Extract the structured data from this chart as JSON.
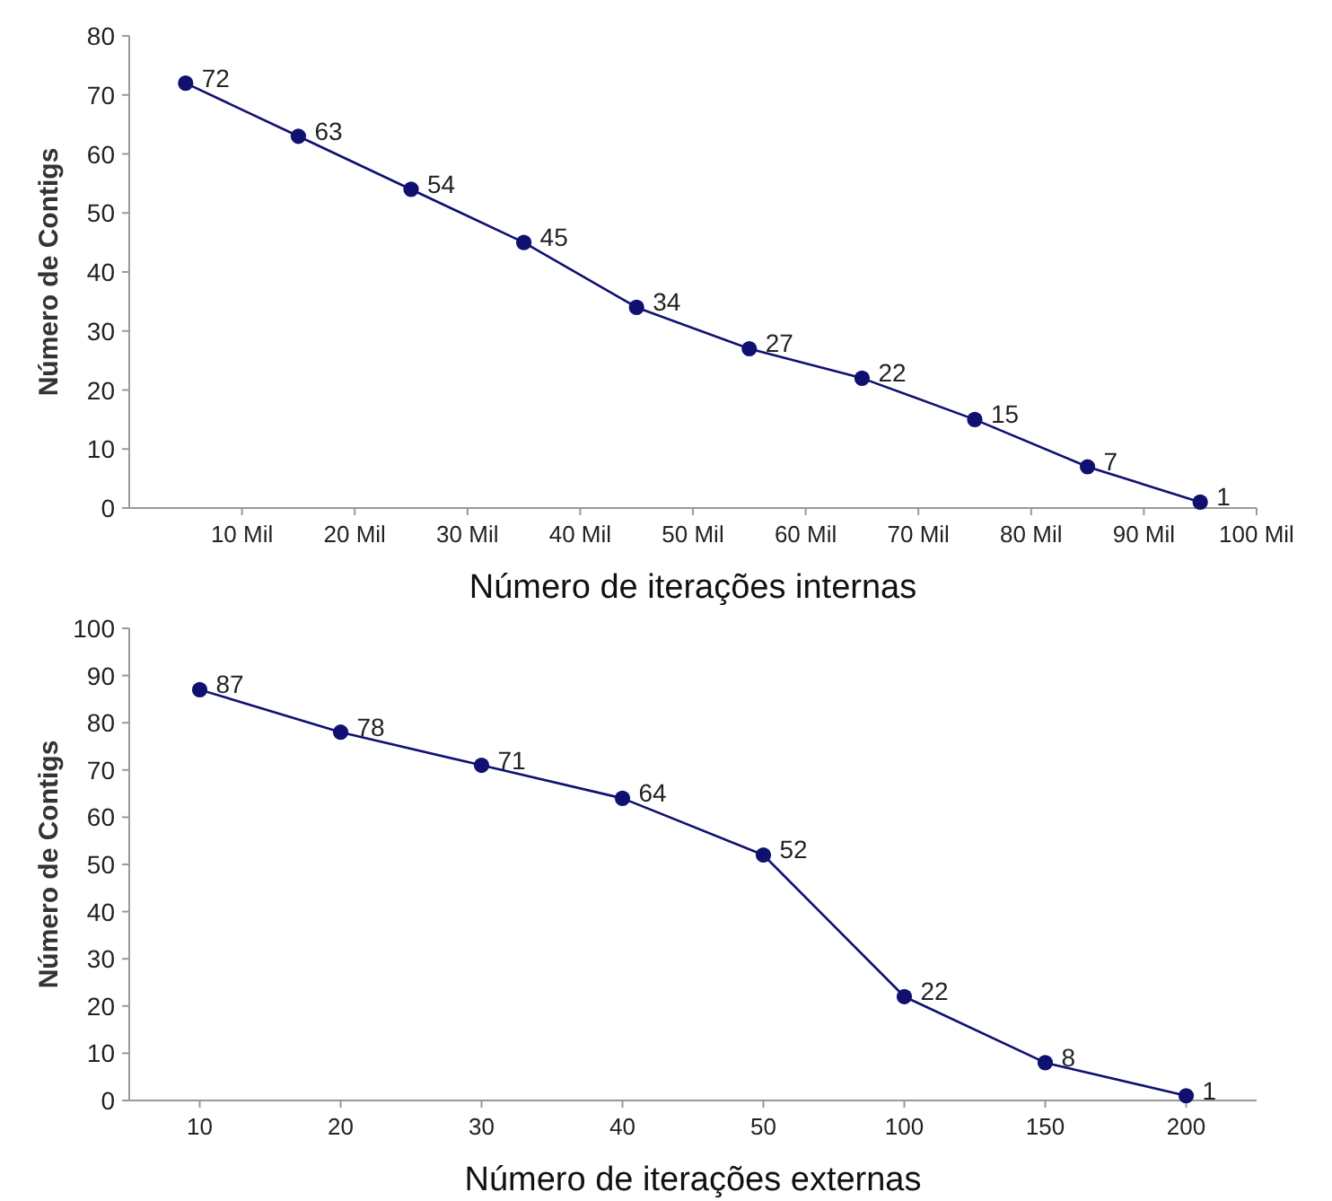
{
  "chart_data": [
    {
      "type": "line",
      "xlabel": "Número de iterações internas",
      "ylabel": "Número de Contigs",
      "x": [
        5,
        15,
        25,
        35,
        45,
        55,
        65,
        75,
        85,
        95
      ],
      "xlim": [
        0,
        100
      ],
      "xticks": [
        {
          "value": 10,
          "label": "10 Mil"
        },
        {
          "value": 20,
          "label": "20 Mil"
        },
        {
          "value": 30,
          "label": "30 Mil"
        },
        {
          "value": 40,
          "label": "40 Mil"
        },
        {
          "value": 50,
          "label": "50 Mil"
        },
        {
          "value": 60,
          "label": "60 Mil"
        },
        {
          "value": 70,
          "label": "70 Mil"
        },
        {
          "value": 80,
          "label": "80 Mil"
        },
        {
          "value": 90,
          "label": "90 Mil"
        },
        {
          "value": 100,
          "label": "100 Mil"
        }
      ],
      "ylim": [
        0,
        80
      ],
      "yticks": [
        0,
        10,
        20,
        30,
        40,
        50,
        60,
        70,
        80
      ],
      "series": [
        {
          "color": "#101070",
          "values": [
            72,
            63,
            54,
            45,
            34,
            27,
            22,
            15,
            7,
            1
          ]
        }
      ],
      "data_labels": true,
      "marker": "circle",
      "line_style": "solid",
      "grid": false
    },
    {
      "type": "line",
      "xlabel": "Número de iterações externas",
      "ylabel": "Número de Contigs",
      "categories": [
        "10",
        "20",
        "30",
        "40",
        "50",
        "100",
        "150",
        "200"
      ],
      "ylim": [
        0,
        100
      ],
      "yticks": [
        0,
        10,
        20,
        30,
        40,
        50,
        60,
        70,
        80,
        90,
        100
      ],
      "series": [
        {
          "color": "#101070",
          "values": [
            87,
            78,
            71,
            64,
            52,
            22,
            8,
            1
          ]
        }
      ],
      "data_labels": true,
      "marker": "circle",
      "line_style": "solid",
      "grid": false
    }
  ]
}
